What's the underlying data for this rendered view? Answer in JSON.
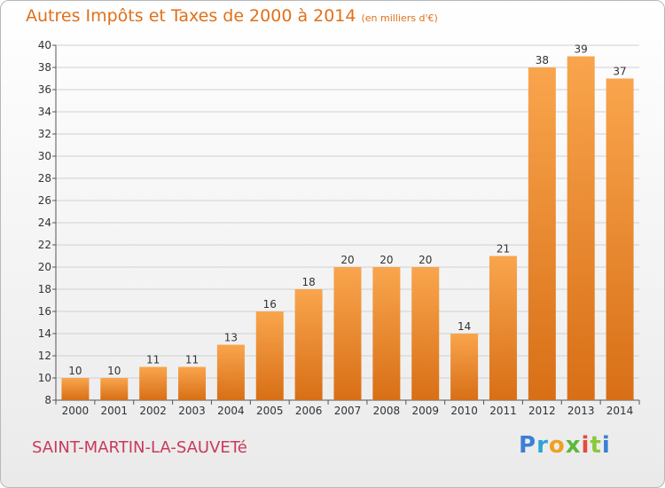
{
  "title": "Autres Impôts et Taxes de 2000 à 2014",
  "unit": "(en milliers d'€)",
  "commune": "SAINT-MARTIN-LA-SAUVETé",
  "logo": [
    "P",
    "r",
    "o",
    "x",
    "i",
    "t",
    "i"
  ],
  "colors": {
    "bar_light": "#f9a54d",
    "bar_dark": "#d86f16",
    "title": "#e0701a",
    "commune": "#c83a5b",
    "grid": "#d0d0d0"
  },
  "chart_data": {
    "type": "bar",
    "title": "Autres Impôts et Taxes de 2000 à 2014",
    "categories": [
      "2000",
      "2001",
      "2002",
      "2003",
      "2004",
      "2005",
      "2006",
      "2007",
      "2008",
      "2009",
      "2010",
      "2011",
      "2012",
      "2013",
      "2014"
    ],
    "values": [
      10,
      10,
      11,
      11,
      13,
      16,
      18,
      20,
      20,
      20,
      14,
      21,
      38,
      39,
      37
    ],
    "ylim": [
      8,
      40
    ],
    "yticks": [
      8,
      10,
      12,
      14,
      16,
      18,
      20,
      22,
      24,
      26,
      28,
      30,
      32,
      34,
      36,
      38,
      40
    ],
    "grid": true,
    "legend": "none"
  }
}
